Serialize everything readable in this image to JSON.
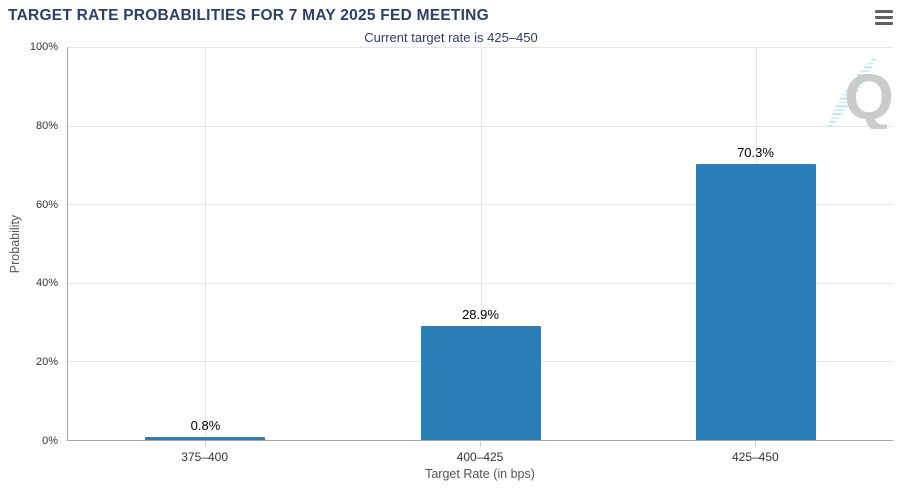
{
  "chart": {
    "title": "TARGET RATE PROBABILITIES FOR 7 MAY 2025 FED MEETING",
    "subtitle": "Current target rate is 425–450",
    "watermark": "quikstrike-logo"
  },
  "colors": {
    "bar": "#2b7fb8",
    "title": "#2c3f66",
    "grid": "#e6e6e6",
    "axis_line": "#a6a6a6",
    "axis_label": "#333333",
    "axis_title": "#555555",
    "data_label": "#000000",
    "menu_icon": "#616161",
    "watermark_q": "#cbcbcb",
    "watermark_dash": "#a9ddf1"
  },
  "chart_data": {
    "type": "bar",
    "title": "TARGET RATE PROBABILITIES FOR 7 MAY 2025 FED MEETING",
    "subtitle": "Current target rate is 425–450",
    "categories": [
      "375–400",
      "400–425",
      "425–450"
    ],
    "values": [
      0.8,
      28.9,
      70.3
    ],
    "value_labels": [
      "0.8%",
      "28.9%",
      "70.3%"
    ],
    "xlabel": "Target Rate (in bps)",
    "ylabel": "Probability",
    "ylim": [
      0,
      100
    ],
    "ytick_values": [
      0,
      20,
      40,
      60,
      80,
      100
    ],
    "ytick_labels": [
      "0%",
      "20%",
      "40%",
      "60%",
      "80%",
      "100%"
    ],
    "grid": true,
    "legend": false
  }
}
